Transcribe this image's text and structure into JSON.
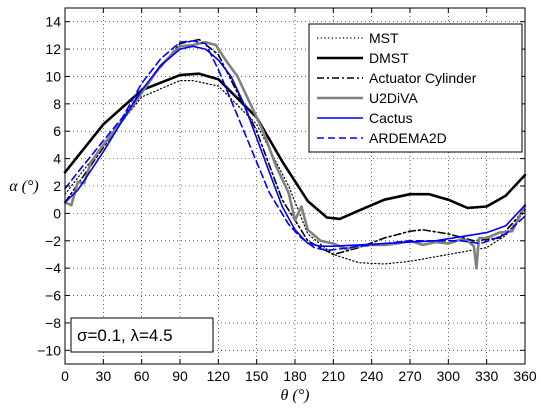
{
  "chart_data": {
    "type": "line",
    "xlabel": "θ (°)",
    "ylabel": "α (°)",
    "xlim": [
      0,
      360
    ],
    "ylim": [
      -11,
      15
    ],
    "xticks": [
      0,
      30,
      60,
      90,
      120,
      150,
      180,
      210,
      240,
      270,
      300,
      330,
      360
    ],
    "yticks": [
      -10,
      -8,
      -6,
      -4,
      -2,
      0,
      2,
      4,
      6,
      8,
      10,
      12,
      14
    ],
    "grid": true,
    "legend_position": "top-right",
    "annotation": "σ=0.1, λ=4.5",
    "series": [
      {
        "name": "MST",
        "color": "#000000",
        "style": "dotted",
        "x": [
          0,
          30,
          60,
          90,
          100,
          120,
          150,
          175,
          190,
          210,
          230,
          250,
          270,
          300,
          330,
          345,
          360
        ],
        "y": [
          1.4,
          5.0,
          8.5,
          9.7,
          9.7,
          9.3,
          6.5,
          2.0,
          -1.5,
          -3.0,
          -3.6,
          -3.7,
          -3.5,
          -3.0,
          -2.5,
          -1.6,
          0.2
        ]
      },
      {
        "name": "DMST",
        "color": "#000000",
        "style": "solid-thick",
        "x": [
          0,
          30,
          60,
          90,
          105,
          120,
          150,
          170,
          190,
          205,
          215,
          230,
          250,
          270,
          285,
          300,
          315,
          330,
          345,
          360
        ],
        "y": [
          3.0,
          6.5,
          9.0,
          10.1,
          10.2,
          9.8,
          7.0,
          3.8,
          0.9,
          -0.3,
          -0.4,
          0.2,
          1.0,
          1.4,
          1.4,
          1.0,
          0.4,
          0.5,
          1.3,
          2.8
        ]
      },
      {
        "name": "Actuator Cylinder",
        "color": "#000000",
        "style": "dashdot",
        "x": [
          0,
          30,
          60,
          90,
          105,
          120,
          150,
          170,
          190,
          210,
          230,
          250,
          270,
          280,
          300,
          320,
          340,
          360
        ],
        "y": [
          0.8,
          4.8,
          9.0,
          12.4,
          12.7,
          11.6,
          6.0,
          1.0,
          -2.0,
          -3.0,
          -2.5,
          -1.8,
          -1.3,
          -1.2,
          -1.5,
          -2.0,
          -1.8,
          0.3
        ]
      },
      {
        "name": "U2DiVA",
        "color": "#808080",
        "style": "solid-thick",
        "x": [
          0,
          5,
          10,
          15,
          20,
          30,
          45,
          60,
          75,
          90,
          100,
          110,
          118,
          125,
          135,
          145,
          155,
          165,
          175,
          180,
          185,
          190,
          200,
          210,
          220,
          230,
          240,
          250,
          260,
          270,
          280,
          290,
          300,
          310,
          315,
          320,
          322,
          324,
          330,
          340,
          350,
          360
        ],
        "y": [
          0.8,
          0.6,
          2.3,
          2.2,
          3.7,
          5.0,
          6.8,
          8.8,
          10.8,
          12.2,
          12.3,
          12.5,
          12.3,
          11.3,
          10.0,
          8.0,
          6.0,
          3.5,
          1.5,
          -0.5,
          0.5,
          -1.2,
          -2.0,
          -2.2,
          -2.6,
          -2.4,
          -2.3,
          -2.3,
          -2.2,
          -2.0,
          -2.3,
          -2.1,
          -2.2,
          -1.9,
          -2.0,
          -2.4,
          -4.0,
          -1.8,
          -1.8,
          -1.4,
          -1.3,
          0.6
        ]
      },
      {
        "name": "Cactus",
        "color": "#0000ff",
        "style": "solid",
        "x": [
          0,
          10,
          30,
          45,
          60,
          75,
          90,
          100,
          110,
          120,
          130,
          140,
          150,
          160,
          170,
          180,
          190,
          200,
          210,
          230,
          250,
          270,
          290,
          310,
          330,
          345,
          360
        ],
        "y": [
          0.8,
          1.7,
          4.5,
          6.8,
          9.0,
          10.8,
          12.0,
          12.2,
          12.0,
          11.2,
          10.0,
          8.0,
          5.5,
          3.0,
          0.5,
          -1.2,
          -2.2,
          -2.4,
          -2.4,
          -2.3,
          -2.2,
          -2.1,
          -2.0,
          -1.7,
          -1.4,
          -0.9,
          0.6
        ]
      },
      {
        "name": "ARDEMA2D",
        "color": "#0000ff",
        "style": "dashed",
        "x": [
          0,
          10,
          30,
          45,
          60,
          75,
          90,
          100,
          110,
          120,
          140,
          160,
          175,
          185,
          195,
          205,
          215,
          230,
          250,
          270,
          290,
          310,
          325,
          335,
          345,
          360
        ],
        "y": [
          1.8,
          3.0,
          5.3,
          7.0,
          9.5,
          11.3,
          12.5,
          12.6,
          12.4,
          10.5,
          6.0,
          1.5,
          -0.8,
          -1.8,
          -2.5,
          -2.7,
          -2.6,
          -2.4,
          -2.2,
          -2.0,
          -2.0,
          -2.0,
          -2.2,
          -1.9,
          -1.5,
          -0.2
        ]
      }
    ]
  }
}
